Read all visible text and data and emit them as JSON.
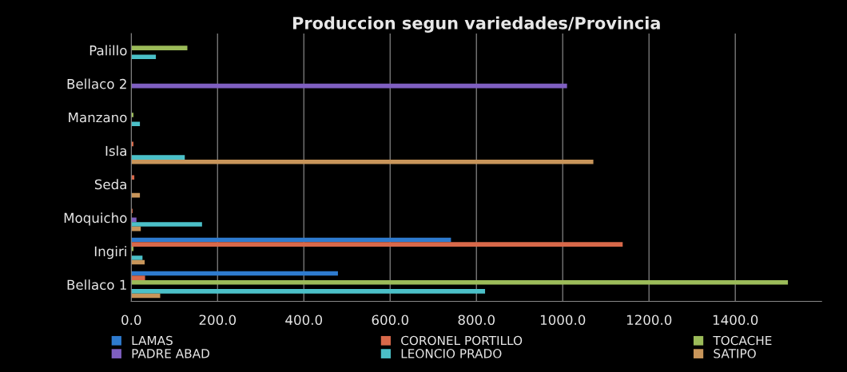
{
  "chart_data": {
    "type": "bar",
    "orientation": "horizontal",
    "title": "Produccion segun variedades/Provincia",
    "categories": [
      "Palillo",
      "Bellaco 2",
      "Manzano",
      "Isla",
      "Seda",
      "Moquicho",
      "Ingiri",
      "Bellaco 1"
    ],
    "series": [
      {
        "name": "LAMAS",
        "color": "#2e7bcf",
        "values": [
          null,
          null,
          null,
          null,
          null,
          null,
          741,
          479
        ]
      },
      {
        "name": "CORONEL PORTILLO",
        "color": "#d8694a",
        "values": [
          null,
          null,
          null,
          5,
          7,
          3,
          1139,
          32
        ]
      },
      {
        "name": "TOCACHE",
        "color": "#9bbb59",
        "values": [
          130,
          null,
          5,
          null,
          null,
          null,
          5,
          1522
        ]
      },
      {
        "name": "PADRE ABAD",
        "color": "#7f5fc1",
        "values": [
          null,
          1010,
          null,
          null,
          null,
          12,
          null,
          null
        ]
      },
      {
        "name": "LEONCIO PRADO",
        "color": "#4bc0c8",
        "values": [
          57,
          null,
          20,
          124,
          null,
          164,
          26,
          820
        ]
      },
      {
        "name": "SATIPO",
        "color": "#c8955a",
        "values": [
          null,
          null,
          null,
          1071,
          20,
          22,
          31,
          67
        ]
      }
    ],
    "xlim": [
      0,
      1600
    ],
    "xticks": [
      {
        "value": 0,
        "label": "0.0"
      },
      {
        "value": 200,
        "label": "200.0"
      },
      {
        "value": 400,
        "label": "400.0"
      },
      {
        "value": 600,
        "label": "600.0"
      },
      {
        "value": 800,
        "label": "800.0"
      },
      {
        "value": 1000,
        "label": "1000.0"
      },
      {
        "value": 1200,
        "label": "1200.0"
      },
      {
        "value": 1400,
        "label": "1400.0"
      }
    ],
    "grid": "x",
    "legend": "bottom"
  }
}
